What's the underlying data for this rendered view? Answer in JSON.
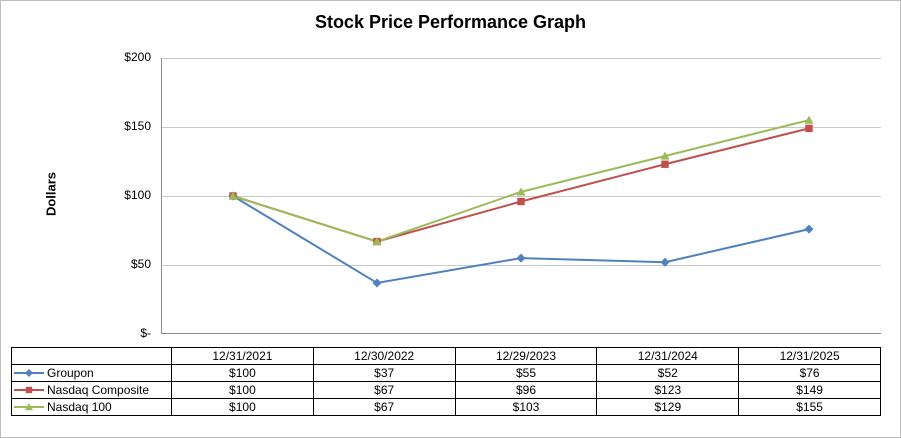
{
  "title": "Stock Price Performance Graph",
  "y_axis": {
    "label": "Dollars",
    "ticks": [
      "$200",
      "$150",
      "$100",
      "$50",
      "$-"
    ],
    "max": 200,
    "step": 50
  },
  "chart_data": {
    "type": "line",
    "title": "Stock Price Performance Graph",
    "xlabel": "",
    "ylabel": "Dollars",
    "ylim": [
      0,
      200
    ],
    "grid": true,
    "legend_position": "table-left",
    "x": [
      "12/31/2021",
      "12/30/2022",
      "12/29/2023",
      "12/31/2024",
      "12/31/2025"
    ],
    "series": [
      {
        "name": "Groupon",
        "values": [
          100,
          37,
          55,
          52,
          76
        ],
        "color": "#4F81BD",
        "marker": "diamond"
      },
      {
        "name": "Nasdaq Composite",
        "values": [
          100,
          67,
          96,
          123,
          149
        ],
        "color": "#C0504D",
        "marker": "square"
      },
      {
        "name": "Nasdaq 100",
        "values": [
          100,
          67,
          103,
          129,
          155
        ],
        "color": "#9BBB59",
        "marker": "triangle"
      }
    ],
    "value_prefix": "$"
  },
  "colors": {
    "gridline": "#c9c9c9",
    "axis_line": "#8c8c8c",
    "frame_border": "#bdbdbd"
  }
}
